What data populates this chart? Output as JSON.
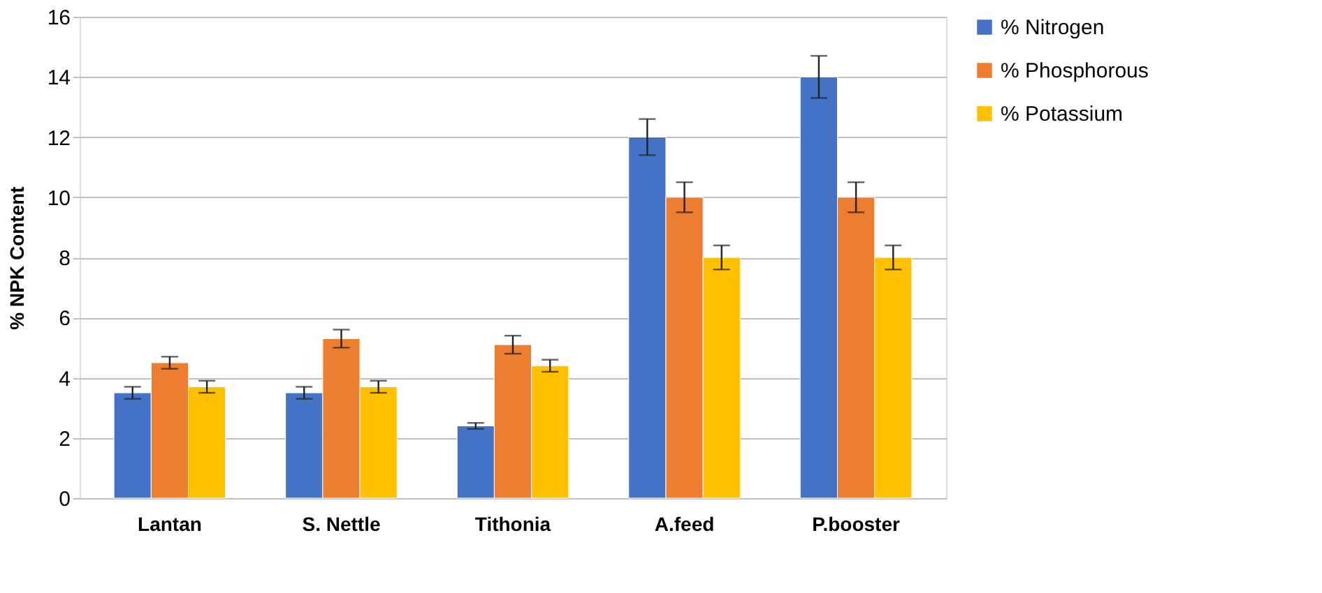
{
  "chart_data": {
    "type": "bar",
    "ylabel": "% NPK Content",
    "categories": [
      "Lantan",
      "S. Nettle",
      "Tithonia",
      "A.feed",
      "P.booster"
    ],
    "series": [
      {
        "name": "% Nitrogen",
        "color": "#4472c4",
        "values": [
          3.5,
          3.5,
          2.4,
          12,
          14
        ],
        "errors": [
          0.2,
          0.2,
          0.1,
          0.6,
          0.7
        ]
      },
      {
        "name": "% Phosphorous",
        "color": "#ed7d31",
        "values": [
          4.5,
          5.3,
          5.1,
          10,
          10
        ],
        "errors": [
          0.2,
          0.3,
          0.3,
          0.5,
          0.5
        ]
      },
      {
        "name": "% Potassium",
        "color": "#ffc000",
        "values": [
          3.7,
          3.7,
          4.4,
          8,
          8
        ],
        "errors": [
          0.2,
          0.2,
          0.2,
          0.4,
          0.4
        ]
      }
    ],
    "ylim": [
      0,
      16
    ],
    "yticks": [
      0,
      2,
      4,
      6,
      8,
      10,
      12,
      14,
      16
    ],
    "grid": "y",
    "legend": "right"
  }
}
